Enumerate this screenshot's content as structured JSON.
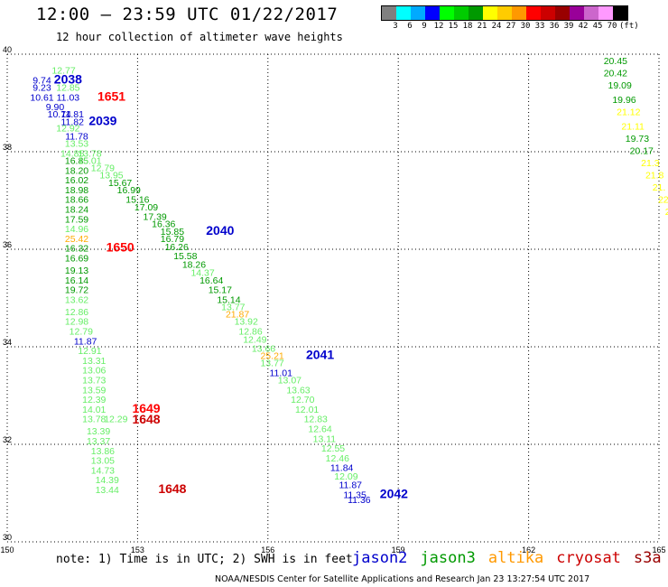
{
  "header": {
    "title": "12:00 – 23:59 UTC 01/22/2017",
    "subtitle": "12 hour collection of altimeter wave heights"
  },
  "colorbar": {
    "colors": [
      "#808080",
      "#00ffff",
      "#00aaff",
      "#0000ff",
      "#00ff00",
      "#00cc00",
      "#009900",
      "#ffff00",
      "#ffcc00",
      "#ff9900",
      "#ff0000",
      "#cc0000",
      "#990000",
      "#990099",
      "#cc66cc",
      "#ff99ff",
      "#000000"
    ],
    "labels": [
      "3",
      "6",
      "9",
      "12",
      "15",
      "18",
      "21",
      "24",
      "27",
      "30",
      "33",
      "36",
      "39",
      "42",
      "45",
      "70",
      "(ft)"
    ]
  },
  "footer": {
    "note": "note: 1) Time is in UTC; 2) SWH is in feet",
    "credit": "NOAA/NESDIS Center for Satellite Applications and Research   Jan 23 13:27:54 UTC 2017"
  },
  "satellites": [
    {
      "name": "jason2",
      "color": "#0000cc"
    },
    {
      "name": "jason3",
      "color": "#009900"
    },
    {
      "name": "altika",
      "color": "#ff9900"
    },
    {
      "name": "cryosat",
      "color": "#cc0000"
    },
    {
      "name": "s3a",
      "color": "#990000"
    }
  ],
  "chart_data": {
    "type": "scatter",
    "title": "12:00 – 23:59 UTC 01/22/2017",
    "xlim": [
      150,
      165
    ],
    "ylim": [
      30,
      40
    ],
    "x_ticks": [
      "150",
      "153",
      "156",
      "159",
      "162",
      "165"
    ],
    "y_ticks": [
      "30",
      "32",
      "34",
      "36",
      "38",
      "40"
    ],
    "grid": true,
    "labels": [
      {
        "x": 151.3,
        "y": 39.6,
        "t": "12.77",
        "c": "#66ee66"
      },
      {
        "x": 150.8,
        "y": 39.4,
        "t": "9.74",
        "c": "#0000cc"
      },
      {
        "x": 151.4,
        "y": 39.4,
        "t": "2038",
        "c": "#0000cc",
        "big": true
      },
      {
        "x": 150.8,
        "y": 39.25,
        "t": "9.23",
        "c": "#0000cc"
      },
      {
        "x": 151.4,
        "y": 39.25,
        "t": "12.85",
        "c": "#66ee66"
      },
      {
        "x": 150.8,
        "y": 39.05,
        "t": "10.61",
        "c": "#0000cc"
      },
      {
        "x": 151.4,
        "y": 39.05,
        "t": "11.03",
        "c": "#0000cc"
      },
      {
        "x": 152.4,
        "y": 39.05,
        "t": "1651",
        "c": "#ff0000",
        "big": true
      },
      {
        "x": 151.1,
        "y": 38.85,
        "t": "9.90",
        "c": "#0000cc"
      },
      {
        "x": 151.2,
        "y": 38.7,
        "t": "10.74",
        "c": "#0000cc"
      },
      {
        "x": 151.5,
        "y": 38.7,
        "t": "11.81",
        "c": "#0000cc"
      },
      {
        "x": 151.5,
        "y": 38.55,
        "t": "11.82",
        "c": "#0000cc"
      },
      {
        "x": 152.2,
        "y": 38.55,
        "t": "2039",
        "c": "#0000cc",
        "big": true
      },
      {
        "x": 151.4,
        "y": 38.42,
        "t": "12.92",
        "c": "#66ee66"
      },
      {
        "x": 151.6,
        "y": 38.25,
        "t": "11.78",
        "c": "#0000cc"
      },
      {
        "x": 151.6,
        "y": 38.1,
        "t": "13.53",
        "c": "#66ee66"
      },
      {
        "x": 151.5,
        "y": 37.9,
        "t": "14.85",
        "c": "#66ee66"
      },
      {
        "x": 151.9,
        "y": 37.9,
        "t": "13.78",
        "c": "#66ee66"
      },
      {
        "x": 151.6,
        "y": 37.75,
        "t": "16.85",
        "c": "#009900"
      },
      {
        "x": 151.9,
        "y": 37.75,
        "t": "15.01",
        "c": "#66ee66"
      },
      {
        "x": 151.6,
        "y": 37.55,
        "t": "18.20",
        "c": "#009900"
      },
      {
        "x": 152.2,
        "y": 37.6,
        "t": "12.79",
        "c": "#66ee66"
      },
      {
        "x": 152.4,
        "y": 37.45,
        "t": "13.95",
        "c": "#66ee66"
      },
      {
        "x": 151.6,
        "y": 37.35,
        "t": "16.02",
        "c": "#009900"
      },
      {
        "x": 152.6,
        "y": 37.3,
        "t": "15.67",
        "c": "#009900"
      },
      {
        "x": 151.6,
        "y": 37.15,
        "t": "18.98",
        "c": "#009900"
      },
      {
        "x": 152.8,
        "y": 37.15,
        "t": "16.99",
        "c": "#009900"
      },
      {
        "x": 151.6,
        "y": 36.95,
        "t": "18.66",
        "c": "#009900"
      },
      {
        "x": 153.0,
        "y": 36.95,
        "t": "15.16",
        "c": "#009900"
      },
      {
        "x": 151.6,
        "y": 36.75,
        "t": "18.24",
        "c": "#009900"
      },
      {
        "x": 153.2,
        "y": 36.8,
        "t": "17.09",
        "c": "#009900"
      },
      {
        "x": 153.4,
        "y": 36.6,
        "t": "17.39",
        "c": "#009900"
      },
      {
        "x": 151.6,
        "y": 36.55,
        "t": "17.59",
        "c": "#009900"
      },
      {
        "x": 153.6,
        "y": 36.45,
        "t": "16.36",
        "c": "#009900"
      },
      {
        "x": 151.6,
        "y": 36.35,
        "t": "14.96",
        "c": "#66ee66"
      },
      {
        "x": 153.8,
        "y": 36.3,
        "t": "15.85",
        "c": "#009900"
      },
      {
        "x": 154.9,
        "y": 36.3,
        "t": "2040",
        "c": "#0000cc",
        "big": true
      },
      {
        "x": 151.6,
        "y": 36.15,
        "t": "25.42",
        "c": "#ffaa00"
      },
      {
        "x": 153.8,
        "y": 36.15,
        "t": "16.79",
        "c": "#009900"
      },
      {
        "x": 151.6,
        "y": 35.95,
        "t": "16.32",
        "c": "#009900"
      },
      {
        "x": 152.6,
        "y": 35.95,
        "t": "1650",
        "c": "#ff0000",
        "big": true
      },
      {
        "x": 153.9,
        "y": 35.98,
        "t": "16.26",
        "c": "#009900"
      },
      {
        "x": 154.1,
        "y": 35.8,
        "t": "15.58",
        "c": "#009900"
      },
      {
        "x": 151.6,
        "y": 35.75,
        "t": "16.69",
        "c": "#009900"
      },
      {
        "x": 154.3,
        "y": 35.62,
        "t": "18.26",
        "c": "#009900"
      },
      {
        "x": 154.5,
        "y": 35.45,
        "t": "14.37",
        "c": "#66ee66"
      },
      {
        "x": 151.6,
        "y": 35.5,
        "t": "19.13",
        "c": "#009900"
      },
      {
        "x": 154.7,
        "y": 35.3,
        "t": "16.64",
        "c": "#009900"
      },
      {
        "x": 151.6,
        "y": 35.3,
        "t": "16.14",
        "c": "#009900"
      },
      {
        "x": 154.9,
        "y": 35.1,
        "t": "15.17",
        "c": "#009900"
      },
      {
        "x": 151.6,
        "y": 35.1,
        "t": "19.72",
        "c": "#009900"
      },
      {
        "x": 155.1,
        "y": 34.9,
        "t": "15.14",
        "c": "#009900"
      },
      {
        "x": 151.6,
        "y": 34.9,
        "t": "13.62",
        "c": "#66ee66"
      },
      {
        "x": 155.2,
        "y": 34.75,
        "t": "13.77",
        "c": "#66ee66"
      },
      {
        "x": 151.6,
        "y": 34.65,
        "t": "12.86",
        "c": "#66ee66"
      },
      {
        "x": 155.3,
        "y": 34.6,
        "t": "21.87",
        "c": "#ffaa00"
      },
      {
        "x": 151.6,
        "y": 34.45,
        "t": "12.98",
        "c": "#66ee66"
      },
      {
        "x": 155.5,
        "y": 34.45,
        "t": "13.92",
        "c": "#66ee66"
      },
      {
        "x": 151.7,
        "y": 34.25,
        "t": "12.79",
        "c": "#66ee66"
      },
      {
        "x": 155.6,
        "y": 34.25,
        "t": "12.86",
        "c": "#66ee66"
      },
      {
        "x": 151.8,
        "y": 34.05,
        "t": "11.87",
        "c": "#0000cc"
      },
      {
        "x": 155.7,
        "y": 34.08,
        "t": "12.49",
        "c": "#66ee66"
      },
      {
        "x": 151.9,
        "y": 33.85,
        "t": "12.91",
        "c": "#66ee66"
      },
      {
        "x": 155.9,
        "y": 33.9,
        "t": "13.66",
        "c": "#66ee66"
      },
      {
        "x": 152.0,
        "y": 33.65,
        "t": "13.31",
        "c": "#66ee66"
      },
      {
        "x": 156.1,
        "y": 33.75,
        "t": "25.21",
        "c": "#ffaa00"
      },
      {
        "x": 157.2,
        "y": 33.75,
        "t": "2041",
        "c": "#0000cc",
        "big": true
      },
      {
        "x": 156.1,
        "y": 33.6,
        "t": "13.77",
        "c": "#66ee66"
      },
      {
        "x": 152.0,
        "y": 33.45,
        "t": "13.06",
        "c": "#66ee66"
      },
      {
        "x": 156.3,
        "y": 33.4,
        "t": "11.01",
        "c": "#0000cc"
      },
      {
        "x": 152.0,
        "y": 33.25,
        "t": "13.73",
        "c": "#66ee66"
      },
      {
        "x": 156.5,
        "y": 33.25,
        "t": "13.07",
        "c": "#66ee66"
      },
      {
        "x": 152.0,
        "y": 33.05,
        "t": "13.59",
        "c": "#66ee66"
      },
      {
        "x": 156.7,
        "y": 33.05,
        "t": "13.63",
        "c": "#66ee66"
      },
      {
        "x": 152.0,
        "y": 32.85,
        "t": "12.39",
        "c": "#66ee66"
      },
      {
        "x": 156.8,
        "y": 32.85,
        "t": "12.70",
        "c": "#66ee66"
      },
      {
        "x": 152.0,
        "y": 32.65,
        "t": "14.01",
        "c": "#66ee66"
      },
      {
        "x": 153.2,
        "y": 32.65,
        "t": "1649",
        "c": "#ff0000",
        "big": true
      },
      {
        "x": 156.9,
        "y": 32.65,
        "t": "12.01",
        "c": "#66ee66"
      },
      {
        "x": 152.0,
        "y": 32.45,
        "t": "13.78",
        "c": "#66ee66"
      },
      {
        "x": 152.5,
        "y": 32.45,
        "t": "12.29",
        "c": "#66ee66"
      },
      {
        "x": 153.2,
        "y": 32.43,
        "t": "1648",
        "c": "#cc0000",
        "big": true
      },
      {
        "x": 157.1,
        "y": 32.45,
        "t": "12.83",
        "c": "#66ee66"
      },
      {
        "x": 157.2,
        "y": 32.25,
        "t": "12.64",
        "c": "#66ee66"
      },
      {
        "x": 152.1,
        "y": 32.2,
        "t": "13.39",
        "c": "#66ee66"
      },
      {
        "x": 157.3,
        "y": 32.05,
        "t": "13.11",
        "c": "#66ee66"
      },
      {
        "x": 152.1,
        "y": 32.0,
        "t": "13.37",
        "c": "#66ee66"
      },
      {
        "x": 157.5,
        "y": 31.85,
        "t": "12.55",
        "c": "#66ee66"
      },
      {
        "x": 152.2,
        "y": 31.8,
        "t": "13.86",
        "c": "#66ee66"
      },
      {
        "x": 157.6,
        "y": 31.65,
        "t": "12.46",
        "c": "#66ee66"
      },
      {
        "x": 152.2,
        "y": 31.6,
        "t": "13.05",
        "c": "#66ee66"
      },
      {
        "x": 157.7,
        "y": 31.45,
        "t": "11.84",
        "c": "#0000cc"
      },
      {
        "x": 152.2,
        "y": 31.4,
        "t": "14.73",
        "c": "#66ee66"
      },
      {
        "x": 157.8,
        "y": 31.28,
        "t": "12.09",
        "c": "#66ee66"
      },
      {
        "x": 157.9,
        "y": 31.1,
        "t": "11.87",
        "c": "#0000cc"
      },
      {
        "x": 152.3,
        "y": 31.2,
        "t": "14.39",
        "c": "#66ee66"
      },
      {
        "x": 158.0,
        "y": 30.9,
        "t": "11.35",
        "c": "#0000cc"
      },
      {
        "x": 158.9,
        "y": 30.9,
        "t": "2042",
        "c": "#0000cc",
        "big": true
      },
      {
        "x": 152.3,
        "y": 31.0,
        "t": "13.44",
        "c": "#66ee66"
      },
      {
        "x": 153.8,
        "y": 31.0,
        "t": "1648",
        "c": "#cc0000",
        "big": true
      },
      {
        "x": 158.1,
        "y": 30.8,
        "t": "11.36",
        "c": "#0000cc"
      },
      {
        "x": 164.0,
        "y": 39.8,
        "t": "20.45",
        "c": "#009900"
      },
      {
        "x": 164.0,
        "y": 39.55,
        "t": "20.42",
        "c": "#009900"
      },
      {
        "x": 164.1,
        "y": 39.3,
        "t": "19.09",
        "c": "#009900"
      },
      {
        "x": 164.2,
        "y": 39.0,
        "t": "19.96",
        "c": "#009900"
      },
      {
        "x": 164.3,
        "y": 38.75,
        "t": "21.12",
        "c": "#ffff00"
      },
      {
        "x": 164.4,
        "y": 38.45,
        "t": "21.11",
        "c": "#ffff00"
      },
      {
        "x": 164.5,
        "y": 38.2,
        "t": "19.73",
        "c": "#009900"
      },
      {
        "x": 164.6,
        "y": 37.95,
        "t": "20.17",
        "c": "#009900"
      },
      {
        "x": 164.8,
        "y": 37.7,
        "t": "21.3",
        "c": "#ffff00"
      },
      {
        "x": 164.9,
        "y": 37.45,
        "t": "21.8",
        "c": "#ffff00"
      },
      {
        "x": 165.0,
        "y": 37.2,
        "t": "21.",
        "c": "#ffff00"
      },
      {
        "x": 165.1,
        "y": 36.95,
        "t": "22",
        "c": "#ffff00"
      },
      {
        "x": 165.2,
        "y": 36.7,
        "t": "2",
        "c": "#ffff00"
      }
    ]
  }
}
